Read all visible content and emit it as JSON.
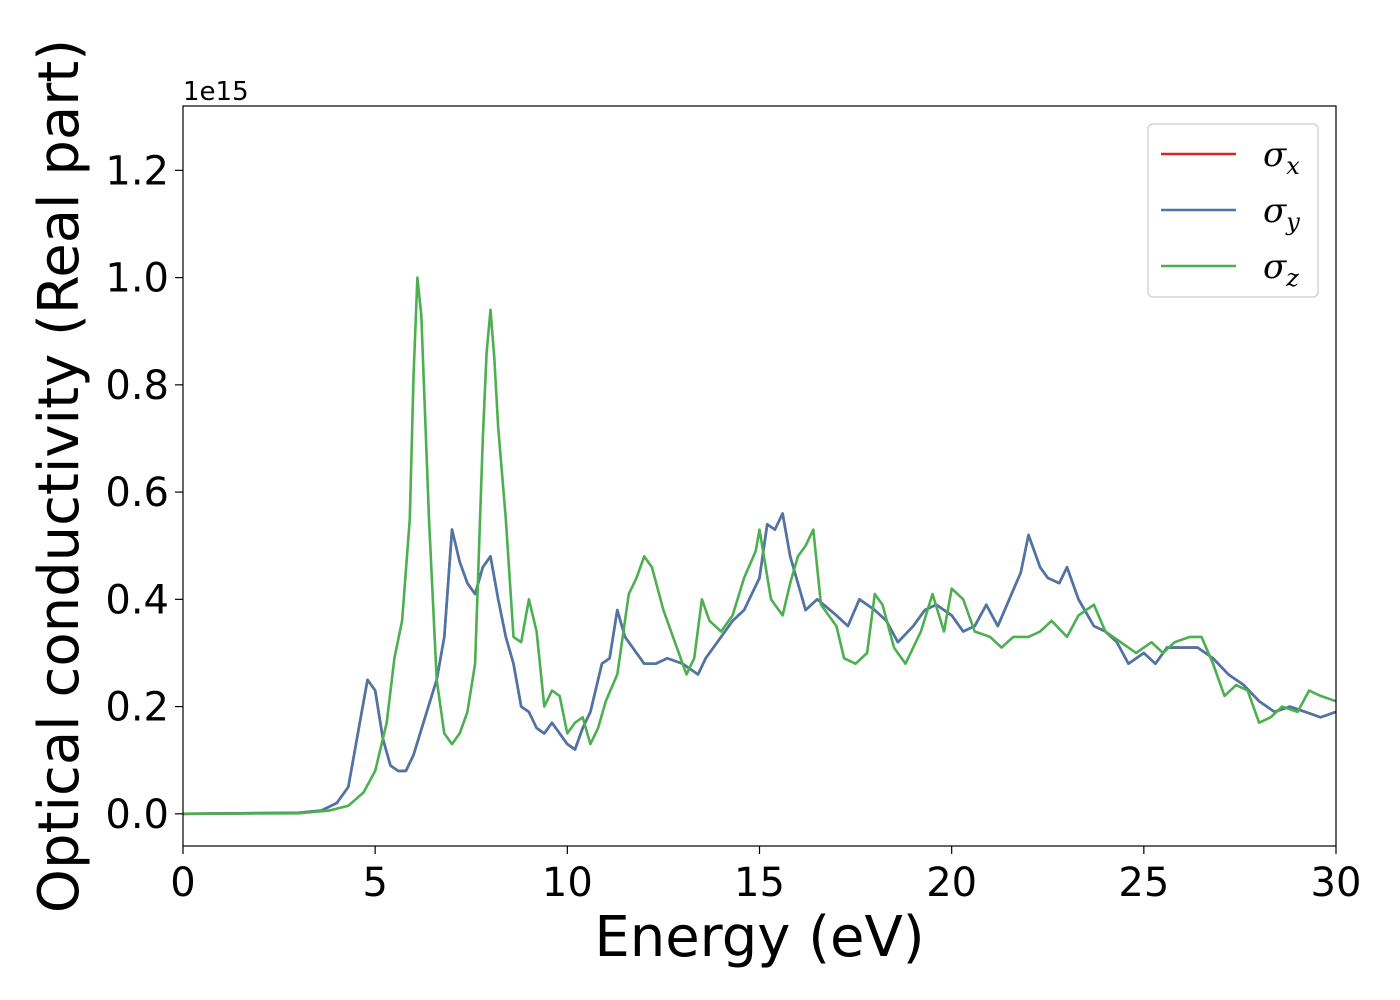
{
  "chart_data": {
    "type": "line",
    "title": "",
    "xlabel": "Energy (eV)",
    "ylabel": "Optical conductivity (Real part)",
    "y_offset_text": "1e15",
    "xlim": [
      0,
      30
    ],
    "ylim": [
      -0.06,
      1.32
    ],
    "x_ticks": [
      0,
      5,
      10,
      15,
      20,
      25,
      30
    ],
    "x_tick_labels": [
      "0",
      "5",
      "10",
      "15",
      "20",
      "25",
      "30"
    ],
    "y_ticks": [
      0.0,
      0.2,
      0.4,
      0.6,
      0.8,
      1.0,
      1.2
    ],
    "y_tick_labels": [
      "0.0",
      "0.2",
      "0.4",
      "0.6",
      "0.8",
      "1.0",
      "1.2"
    ],
    "grid": false,
    "legend_position": "top-right",
    "colors": {
      "sigma_x": "#d62728",
      "sigma_y": "#4a76a8",
      "sigma_z": "#4caf50"
    },
    "legend": [
      {
        "key": "sigma_x",
        "symbol": "σ",
        "sub": "x"
      },
      {
        "key": "sigma_y",
        "symbol": "σ",
        "sub": "y"
      },
      {
        "key": "sigma_z",
        "symbol": "σ",
        "sub": "z"
      }
    ],
    "series": [
      {
        "key": "sigma_x",
        "points": [
          [
            0,
            0
          ],
          [
            3.0,
            0.002
          ],
          [
            3.6,
            0.006
          ],
          [
            4.0,
            0.02
          ],
          [
            4.3,
            0.05
          ],
          [
            4.6,
            0.17
          ],
          [
            4.8,
            0.25
          ],
          [
            5.0,
            0.23
          ],
          [
            5.2,
            0.14
          ],
          [
            5.4,
            0.09
          ],
          [
            5.6,
            0.08
          ],
          [
            5.8,
            0.08
          ],
          [
            6.0,
            0.11
          ],
          [
            6.3,
            0.18
          ],
          [
            6.6,
            0.25
          ],
          [
            6.8,
            0.33
          ],
          [
            7.0,
            0.53
          ],
          [
            7.2,
            0.47
          ],
          [
            7.4,
            0.43
          ],
          [
            7.6,
            0.41
          ],
          [
            7.8,
            0.46
          ],
          [
            8.0,
            0.48
          ],
          [
            8.2,
            0.4
          ],
          [
            8.4,
            0.33
          ],
          [
            8.6,
            0.28
          ],
          [
            8.8,
            0.2
          ],
          [
            9.0,
            0.19
          ],
          [
            9.2,
            0.16
          ],
          [
            9.4,
            0.15
          ],
          [
            9.6,
            0.17
          ],
          [
            9.8,
            0.15
          ],
          [
            10.0,
            0.13
          ],
          [
            10.2,
            0.12
          ],
          [
            10.4,
            0.16
          ],
          [
            10.6,
            0.19
          ],
          [
            10.9,
            0.28
          ],
          [
            11.1,
            0.29
          ],
          [
            11.3,
            0.38
          ],
          [
            11.5,
            0.33
          ],
          [
            11.7,
            0.31
          ],
          [
            12.0,
            0.28
          ],
          [
            12.3,
            0.28
          ],
          [
            12.6,
            0.29
          ],
          [
            13.0,
            0.28
          ],
          [
            13.4,
            0.26
          ],
          [
            13.6,
            0.29
          ],
          [
            14.0,
            0.33
          ],
          [
            14.3,
            0.36
          ],
          [
            14.6,
            0.38
          ],
          [
            15.0,
            0.44
          ],
          [
            15.2,
            0.54
          ],
          [
            15.4,
            0.53
          ],
          [
            15.6,
            0.56
          ],
          [
            15.8,
            0.48
          ],
          [
            16.0,
            0.43
          ],
          [
            16.2,
            0.38
          ],
          [
            16.5,
            0.4
          ],
          [
            17.0,
            0.37
          ],
          [
            17.3,
            0.35
          ],
          [
            17.6,
            0.4
          ],
          [
            18.0,
            0.38
          ],
          [
            18.3,
            0.36
          ],
          [
            18.6,
            0.32
          ],
          [
            19.0,
            0.35
          ],
          [
            19.3,
            0.38
          ],
          [
            19.6,
            0.39
          ],
          [
            20.0,
            0.37
          ],
          [
            20.3,
            0.34
          ],
          [
            20.6,
            0.35
          ],
          [
            20.9,
            0.39
          ],
          [
            21.2,
            0.35
          ],
          [
            21.5,
            0.4
          ],
          [
            21.8,
            0.45
          ],
          [
            22.0,
            0.52
          ],
          [
            22.3,
            0.46
          ],
          [
            22.5,
            0.44
          ],
          [
            22.8,
            0.43
          ],
          [
            23.0,
            0.46
          ],
          [
            23.3,
            0.4
          ],
          [
            23.7,
            0.35
          ],
          [
            24.0,
            0.34
          ],
          [
            24.3,
            0.32
          ],
          [
            24.6,
            0.28
          ],
          [
            25.0,
            0.3
          ],
          [
            25.3,
            0.28
          ],
          [
            25.6,
            0.31
          ],
          [
            26.0,
            0.31
          ],
          [
            26.4,
            0.31
          ],
          [
            26.8,
            0.29
          ],
          [
            27.2,
            0.26
          ],
          [
            27.6,
            0.24
          ],
          [
            28.0,
            0.21
          ],
          [
            28.4,
            0.19
          ],
          [
            28.8,
            0.2
          ],
          [
            29.2,
            0.19
          ],
          [
            29.6,
            0.18
          ],
          [
            30.0,
            0.19
          ]
        ]
      },
      {
        "key": "sigma_y",
        "points": [
          [
            0,
            0
          ],
          [
            3.0,
            0.002
          ],
          [
            3.6,
            0.006
          ],
          [
            4.0,
            0.02
          ],
          [
            4.3,
            0.05
          ],
          [
            4.6,
            0.17
          ],
          [
            4.8,
            0.25
          ],
          [
            5.0,
            0.23
          ],
          [
            5.2,
            0.14
          ],
          [
            5.4,
            0.09
          ],
          [
            5.6,
            0.08
          ],
          [
            5.8,
            0.08
          ],
          [
            6.0,
            0.11
          ],
          [
            6.3,
            0.18
          ],
          [
            6.6,
            0.25
          ],
          [
            6.8,
            0.33
          ],
          [
            7.0,
            0.53
          ],
          [
            7.2,
            0.47
          ],
          [
            7.4,
            0.43
          ],
          [
            7.6,
            0.41
          ],
          [
            7.8,
            0.46
          ],
          [
            8.0,
            0.48
          ],
          [
            8.2,
            0.4
          ],
          [
            8.4,
            0.33
          ],
          [
            8.6,
            0.28
          ],
          [
            8.8,
            0.2
          ],
          [
            9.0,
            0.19
          ],
          [
            9.2,
            0.16
          ],
          [
            9.4,
            0.15
          ],
          [
            9.6,
            0.17
          ],
          [
            9.8,
            0.15
          ],
          [
            10.0,
            0.13
          ],
          [
            10.2,
            0.12
          ],
          [
            10.4,
            0.16
          ],
          [
            10.6,
            0.19
          ],
          [
            10.9,
            0.28
          ],
          [
            11.1,
            0.29
          ],
          [
            11.3,
            0.38
          ],
          [
            11.5,
            0.33
          ],
          [
            11.7,
            0.31
          ],
          [
            12.0,
            0.28
          ],
          [
            12.3,
            0.28
          ],
          [
            12.6,
            0.29
          ],
          [
            13.0,
            0.28
          ],
          [
            13.4,
            0.26
          ],
          [
            13.6,
            0.29
          ],
          [
            14.0,
            0.33
          ],
          [
            14.3,
            0.36
          ],
          [
            14.6,
            0.38
          ],
          [
            15.0,
            0.44
          ],
          [
            15.2,
            0.54
          ],
          [
            15.4,
            0.53
          ],
          [
            15.6,
            0.56
          ],
          [
            15.8,
            0.48
          ],
          [
            16.0,
            0.43
          ],
          [
            16.2,
            0.38
          ],
          [
            16.5,
            0.4
          ],
          [
            17.0,
            0.37
          ],
          [
            17.3,
            0.35
          ],
          [
            17.6,
            0.4
          ],
          [
            18.0,
            0.38
          ],
          [
            18.3,
            0.36
          ],
          [
            18.6,
            0.32
          ],
          [
            19.0,
            0.35
          ],
          [
            19.3,
            0.38
          ],
          [
            19.6,
            0.39
          ],
          [
            20.0,
            0.37
          ],
          [
            20.3,
            0.34
          ],
          [
            20.6,
            0.35
          ],
          [
            20.9,
            0.39
          ],
          [
            21.2,
            0.35
          ],
          [
            21.5,
            0.4
          ],
          [
            21.8,
            0.45
          ],
          [
            22.0,
            0.52
          ],
          [
            22.3,
            0.46
          ],
          [
            22.5,
            0.44
          ],
          [
            22.8,
            0.43
          ],
          [
            23.0,
            0.46
          ],
          [
            23.3,
            0.4
          ],
          [
            23.7,
            0.35
          ],
          [
            24.0,
            0.34
          ],
          [
            24.3,
            0.32
          ],
          [
            24.6,
            0.28
          ],
          [
            25.0,
            0.3
          ],
          [
            25.3,
            0.28
          ],
          [
            25.6,
            0.31
          ],
          [
            26.0,
            0.31
          ],
          [
            26.4,
            0.31
          ],
          [
            26.8,
            0.29
          ],
          [
            27.2,
            0.26
          ],
          [
            27.6,
            0.24
          ],
          [
            28.0,
            0.21
          ],
          [
            28.4,
            0.19
          ],
          [
            28.8,
            0.2
          ],
          [
            29.2,
            0.19
          ],
          [
            29.6,
            0.18
          ],
          [
            30.0,
            0.19
          ]
        ]
      },
      {
        "key": "sigma_z",
        "points": [
          [
            0,
            0
          ],
          [
            3.0,
            0.001
          ],
          [
            3.8,
            0.006
          ],
          [
            4.3,
            0.015
          ],
          [
            4.7,
            0.04
          ],
          [
            5.0,
            0.08
          ],
          [
            5.3,
            0.17
          ],
          [
            5.5,
            0.29
          ],
          [
            5.7,
            0.36
          ],
          [
            5.9,
            0.55
          ],
          [
            6.0,
            0.82
          ],
          [
            6.1,
            1.0
          ],
          [
            6.2,
            0.93
          ],
          [
            6.4,
            0.55
          ],
          [
            6.6,
            0.25
          ],
          [
            6.8,
            0.15
          ],
          [
            7.0,
            0.13
          ],
          [
            7.2,
            0.15
          ],
          [
            7.4,
            0.19
          ],
          [
            7.6,
            0.28
          ],
          [
            7.8,
            0.7
          ],
          [
            7.9,
            0.86
          ],
          [
            8.0,
            0.94
          ],
          [
            8.1,
            0.85
          ],
          [
            8.2,
            0.72
          ],
          [
            8.4,
            0.55
          ],
          [
            8.6,
            0.33
          ],
          [
            8.8,
            0.32
          ],
          [
            9.0,
            0.4
          ],
          [
            9.2,
            0.34
          ],
          [
            9.4,
            0.2
          ],
          [
            9.6,
            0.23
          ],
          [
            9.8,
            0.22
          ],
          [
            10.0,
            0.15
          ],
          [
            10.2,
            0.17
          ],
          [
            10.4,
            0.18
          ],
          [
            10.6,
            0.13
          ],
          [
            10.8,
            0.16
          ],
          [
            11.0,
            0.21
          ],
          [
            11.3,
            0.26
          ],
          [
            11.6,
            0.41
          ],
          [
            11.8,
            0.44
          ],
          [
            12.0,
            0.48
          ],
          [
            12.2,
            0.46
          ],
          [
            12.5,
            0.38
          ],
          [
            12.8,
            0.32
          ],
          [
            13.1,
            0.26
          ],
          [
            13.3,
            0.29
          ],
          [
            13.5,
            0.4
          ],
          [
            13.7,
            0.36
          ],
          [
            14.0,
            0.34
          ],
          [
            14.3,
            0.37
          ],
          [
            14.6,
            0.44
          ],
          [
            14.9,
            0.49
          ],
          [
            15.0,
            0.53
          ],
          [
            15.3,
            0.4
          ],
          [
            15.6,
            0.37
          ],
          [
            15.8,
            0.43
          ],
          [
            16.0,
            0.48
          ],
          [
            16.2,
            0.5
          ],
          [
            16.4,
            0.53
          ],
          [
            16.6,
            0.39
          ],
          [
            17.0,
            0.35
          ],
          [
            17.2,
            0.29
          ],
          [
            17.5,
            0.28
          ],
          [
            17.8,
            0.3
          ],
          [
            18.0,
            0.41
          ],
          [
            18.2,
            0.39
          ],
          [
            18.5,
            0.31
          ],
          [
            18.8,
            0.28
          ],
          [
            19.2,
            0.34
          ],
          [
            19.5,
            0.41
          ],
          [
            19.8,
            0.34
          ],
          [
            20.0,
            0.42
          ],
          [
            20.3,
            0.4
          ],
          [
            20.6,
            0.34
          ],
          [
            21.0,
            0.33
          ],
          [
            21.3,
            0.31
          ],
          [
            21.6,
            0.33
          ],
          [
            22.0,
            0.33
          ],
          [
            22.3,
            0.34
          ],
          [
            22.6,
            0.36
          ],
          [
            23.0,
            0.33
          ],
          [
            23.3,
            0.37
          ],
          [
            23.7,
            0.39
          ],
          [
            24.0,
            0.34
          ],
          [
            24.4,
            0.32
          ],
          [
            24.8,
            0.3
          ],
          [
            25.2,
            0.32
          ],
          [
            25.5,
            0.3
          ],
          [
            25.8,
            0.32
          ],
          [
            26.2,
            0.33
          ],
          [
            26.5,
            0.33
          ],
          [
            26.8,
            0.28
          ],
          [
            27.1,
            0.22
          ],
          [
            27.4,
            0.24
          ],
          [
            27.7,
            0.23
          ],
          [
            28.0,
            0.17
          ],
          [
            28.3,
            0.18
          ],
          [
            28.6,
            0.2
          ],
          [
            29.0,
            0.19
          ],
          [
            29.3,
            0.23
          ],
          [
            29.6,
            0.22
          ],
          [
            30.0,
            0.21
          ]
        ]
      }
    ]
  }
}
